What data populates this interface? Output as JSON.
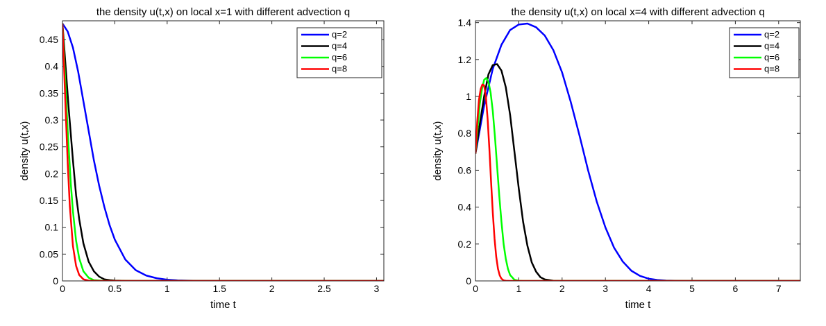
{
  "chart_data": [
    {
      "type": "line",
      "title": "the density u(t,x) on local x=1 with different advection q",
      "xlabel": "time t",
      "ylabel": "density u(t,x)",
      "xlim": [
        0,
        3.07
      ],
      "ylim": [
        0,
        0.485
      ],
      "xticks": [
        0,
        0.5,
        1,
        1.5,
        2,
        2.5,
        3
      ],
      "xtick_labels": [
        "0",
        "0.5",
        "1",
        "1.5",
        "2",
        "2.5",
        "3"
      ],
      "yticks": [
        0,
        0.05,
        0.1,
        0.15,
        0.2,
        0.25,
        0.3,
        0.35,
        0.4,
        0.45
      ],
      "ytick_labels": [
        "0",
        "0.05",
        "0.1",
        "0.15",
        "0.2",
        "0.25",
        "0.3",
        "0.35",
        "0.4",
        "0.45"
      ],
      "grid": false,
      "legend_position": "top-right",
      "series": [
        {
          "name": "q=2",
          "color": "#0000ff",
          "x": [
            0,
            0.05,
            0.1,
            0.15,
            0.2,
            0.25,
            0.3,
            0.35,
            0.4,
            0.45,
            0.5,
            0.6,
            0.7,
            0.8,
            0.9,
            1.0,
            1.1,
            1.2,
            1.3,
            1.4,
            1.5,
            3.07
          ],
          "y": [
            0.48,
            0.465,
            0.435,
            0.39,
            0.335,
            0.28,
            0.225,
            0.178,
            0.138,
            0.104,
            0.077,
            0.04,
            0.02,
            0.01,
            0.005,
            0.0023,
            0.001,
            0.0005,
            0.0002,
            0.0001,
            0.0,
            0.0
          ]
        },
        {
          "name": "q=4",
          "color": "#000000",
          "x": [
            0,
            0.03,
            0.06,
            0.1,
            0.13,
            0.16,
            0.2,
            0.25,
            0.3,
            0.35,
            0.4,
            0.45,
            0.5,
            0.6,
            0.7,
            3.07
          ],
          "y": [
            0.48,
            0.4,
            0.32,
            0.225,
            0.16,
            0.115,
            0.07,
            0.036,
            0.018,
            0.008,
            0.003,
            0.0015,
            0.0006,
            0.0001,
            0.0,
            0.0
          ]
        },
        {
          "name": "q=6",
          "color": "#00ff00",
          "x": [
            0,
            0.02,
            0.05,
            0.08,
            0.1,
            0.13,
            0.16,
            0.2,
            0.25,
            0.3,
            0.4,
            0.5,
            3.07
          ],
          "y": [
            0.48,
            0.4,
            0.28,
            0.18,
            0.13,
            0.075,
            0.042,
            0.018,
            0.006,
            0.0015,
            0.0002,
            0.0,
            0.0
          ]
        },
        {
          "name": "q=8",
          "color": "#ff0000",
          "x": [
            0,
            0.015,
            0.03,
            0.05,
            0.07,
            0.1,
            0.13,
            0.16,
            0.2,
            0.25,
            0.35,
            3.07
          ],
          "y": [
            0.48,
            0.4,
            0.32,
            0.22,
            0.14,
            0.065,
            0.028,
            0.011,
            0.003,
            0.0005,
            0.0,
            0.0
          ]
        }
      ]
    },
    {
      "type": "line",
      "title": "the density u(t,x) on local x=4 with different advection q",
      "xlabel": "time t",
      "ylabel": "density u(t,x)",
      "xlim": [
        0,
        7.5
      ],
      "ylim": [
        0,
        1.41
      ],
      "xticks": [
        0,
        1,
        2,
        3,
        4,
        5,
        6,
        7
      ],
      "xtick_labels": [
        "0",
        "1",
        "2",
        "3",
        "4",
        "5",
        "6",
        "7"
      ],
      "yticks": [
        0,
        0.2,
        0.4,
        0.6,
        0.8,
        1,
        1.2,
        1.4
      ],
      "ytick_labels": [
        "0",
        "0.2",
        "0.4",
        "0.6",
        "0.8",
        "1",
        "1.2",
        "1.4"
      ],
      "grid": false,
      "legend_position": "top-right",
      "series": [
        {
          "name": "q=2",
          "color": "#0000ff",
          "x": [
            0,
            0.2,
            0.4,
            0.6,
            0.8,
            1.0,
            1.2,
            1.4,
            1.6,
            1.8,
            2.0,
            2.2,
            2.4,
            2.6,
            2.8,
            3.0,
            3.2,
            3.4,
            3.6,
            3.8,
            4.0,
            4.2,
            4.4,
            4.6,
            4.8,
            5.0,
            7.5
          ],
          "y": [
            0.69,
            0.95,
            1.15,
            1.28,
            1.36,
            1.39,
            1.395,
            1.375,
            1.33,
            1.25,
            1.13,
            0.97,
            0.79,
            0.6,
            0.43,
            0.29,
            0.18,
            0.105,
            0.055,
            0.027,
            0.012,
            0.005,
            0.002,
            0.0007,
            0.0002,
            0.0,
            0.0
          ]
        },
        {
          "name": "q=4",
          "color": "#000000",
          "x": [
            0,
            0.1,
            0.2,
            0.3,
            0.4,
            0.5,
            0.6,
            0.7,
            0.8,
            0.9,
            1.0,
            1.1,
            1.2,
            1.3,
            1.4,
            1.5,
            1.6,
            1.8,
            2.0,
            7.5
          ],
          "y": [
            0.69,
            0.85,
            1.0,
            1.12,
            1.17,
            1.175,
            1.14,
            1.05,
            0.9,
            0.7,
            0.5,
            0.32,
            0.19,
            0.1,
            0.05,
            0.02,
            0.008,
            0.001,
            0.0,
            0.0
          ]
        },
        {
          "name": "q=6",
          "color": "#00ff00",
          "x": [
            0,
            0.05,
            0.1,
            0.15,
            0.2,
            0.25,
            0.3,
            0.35,
            0.4,
            0.45,
            0.5,
            0.55,
            0.6,
            0.65,
            0.7,
            0.75,
            0.8,
            0.9,
            1.0,
            1.1,
            7.5
          ],
          "y": [
            0.69,
            0.83,
            0.96,
            1.04,
            1.09,
            1.1,
            1.08,
            1.02,
            0.92,
            0.78,
            0.62,
            0.46,
            0.32,
            0.2,
            0.12,
            0.065,
            0.032,
            0.006,
            0.001,
            0.0,
            0.0
          ]
        },
        {
          "name": "q=8",
          "color": "#ff0000",
          "x": [
            0,
            0.04,
            0.08,
            0.12,
            0.16,
            0.2,
            0.24,
            0.28,
            0.32,
            0.36,
            0.4,
            0.44,
            0.48,
            0.52,
            0.56,
            0.6,
            0.65,
            0.7,
            0.8,
            7.5
          ],
          "y": [
            0.69,
            0.86,
            0.98,
            1.04,
            1.065,
            1.06,
            1.0,
            0.88,
            0.72,
            0.54,
            0.37,
            0.23,
            0.13,
            0.065,
            0.03,
            0.012,
            0.003,
            0.0008,
            0.0,
            0.0
          ]
        }
      ]
    }
  ]
}
